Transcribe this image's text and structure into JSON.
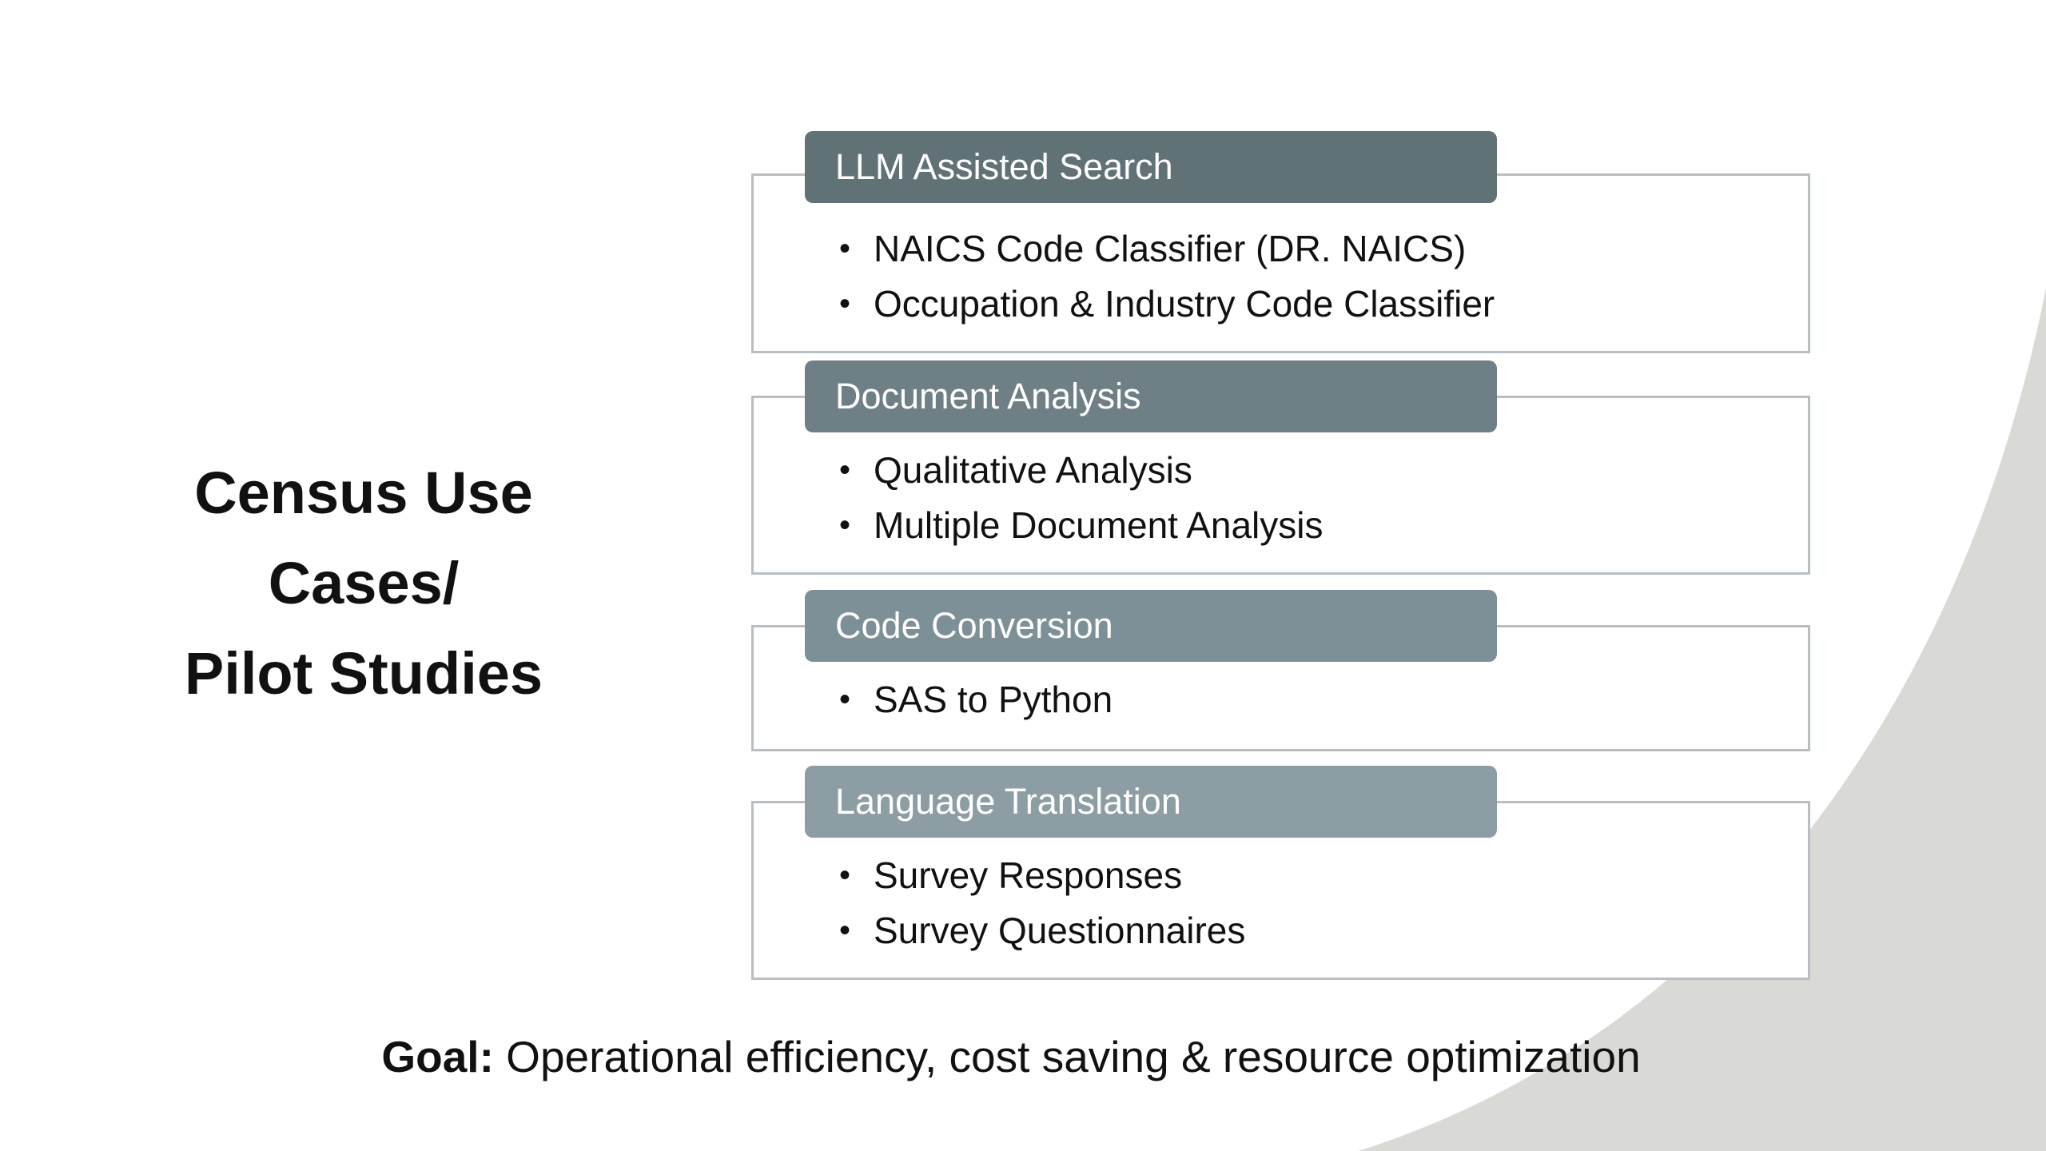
{
  "title_lines": [
    "Census Use",
    "Cases/",
    "Pilot Studies"
  ],
  "groups": [
    {
      "header": "LLM Assisted Search",
      "items": [
        "NAICS Code Classifier (DR. NAICS)",
        "Occupation & Industry Code Classifier"
      ]
    },
    {
      "header": "Document Analysis",
      "items": [
        "Qualitative Analysis",
        "Multiple Document Analysis"
      ]
    },
    {
      "header": "Code Conversion",
      "items": [
        "SAS to Python"
      ]
    },
    {
      "header": "Language Translation",
      "items": [
        "Survey Responses",
        "Survey Questionnaires"
      ]
    }
  ],
  "goal": {
    "label": "Goal:",
    "text": " Operational efficiency, cost saving & resource optimization"
  },
  "bullet_char": "•",
  "colors": {
    "header_1": "#617277",
    "header_2": "#6e8086",
    "header_3": "#7d9097",
    "header_4": "#8c9da3",
    "box_border": "#b8bfc4",
    "corner_shape": "#d9d9d6",
    "text": "#111111"
  }
}
